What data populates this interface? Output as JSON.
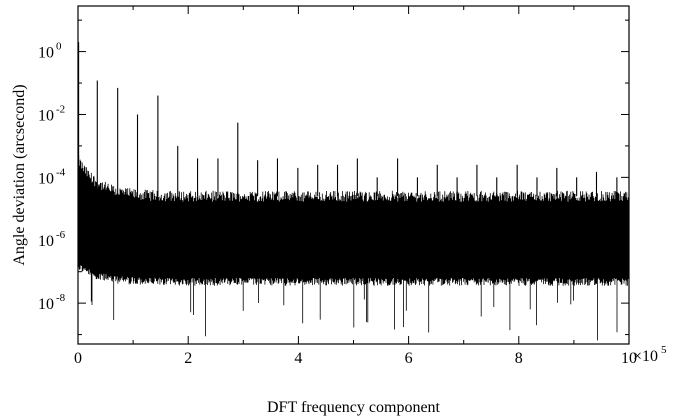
{
  "chart_data": {
    "type": "line",
    "title": "",
    "xlabel": "DFT frequency component",
    "ylabel": "Angle deviation (arcsecond)",
    "x_multiplier_label": "×10",
    "x_multiplier_exponent": "5",
    "xlim": [
      0,
      10
    ],
    "ylim_log10": [
      -9.3,
      1.45
    ],
    "yscale": "log",
    "x_ticks": [
      0,
      2,
      4,
      6,
      8,
      10
    ],
    "y_ticks": [
      {
        "base": "10",
        "exp": "0",
        "log10": 0
      },
      {
        "base": "10",
        "exp": "-2",
        "log10": -2
      },
      {
        "base": "10",
        "exp": "-4",
        "log10": -4
      },
      {
        "base": "10",
        "exp": "-6",
        "log10": -6
      },
      {
        "base": "10",
        "exp": "-8",
        "log10": -8
      }
    ],
    "grid": false,
    "noise_band": {
      "upper_log10": -4.6,
      "lower_log10": -7.2,
      "center_log10": -5.9
    },
    "peaks": [
      {
        "x": 0.35,
        "y": 0.12
      },
      {
        "x": 0.72,
        "y": 0.07
      },
      {
        "x": 1.08,
        "y": 0.01
      },
      {
        "x": 1.45,
        "y": 0.04
      },
      {
        "x": 1.81,
        "y": 0.001
      },
      {
        "x": 2.17,
        "y": 0.0004
      },
      {
        "x": 2.54,
        "y": 0.0004
      },
      {
        "x": 2.9,
        "y": 0.0055
      },
      {
        "x": 3.26,
        "y": 0.00035
      },
      {
        "x": 3.62,
        "y": 0.0004
      },
      {
        "x": 3.99,
        "y": 0.0002
      },
      {
        "x": 4.35,
        "y": 0.00025
      },
      {
        "x": 4.71,
        "y": 0.00025
      },
      {
        "x": 5.07,
        "y": 0.0004
      },
      {
        "x": 5.43,
        "y": 0.0001
      },
      {
        "x": 5.8,
        "y": 0.0004
      },
      {
        "x": 6.16,
        "y": 0.0001
      },
      {
        "x": 6.52,
        "y": 0.00025
      },
      {
        "x": 6.88,
        "y": 0.0001
      },
      {
        "x": 7.24,
        "y": 0.00025
      },
      {
        "x": 7.6,
        "y": 0.0001
      },
      {
        "x": 7.97,
        "y": 0.00025
      },
      {
        "x": 8.33,
        "y": 0.0001
      },
      {
        "x": 8.69,
        "y": 0.0002
      },
      {
        "x": 9.05,
        "y": 0.0001
      },
      {
        "x": 9.41,
        "y": 0.00015
      },
      {
        "x": 9.78,
        "y": 0.0001
      }
    ]
  }
}
